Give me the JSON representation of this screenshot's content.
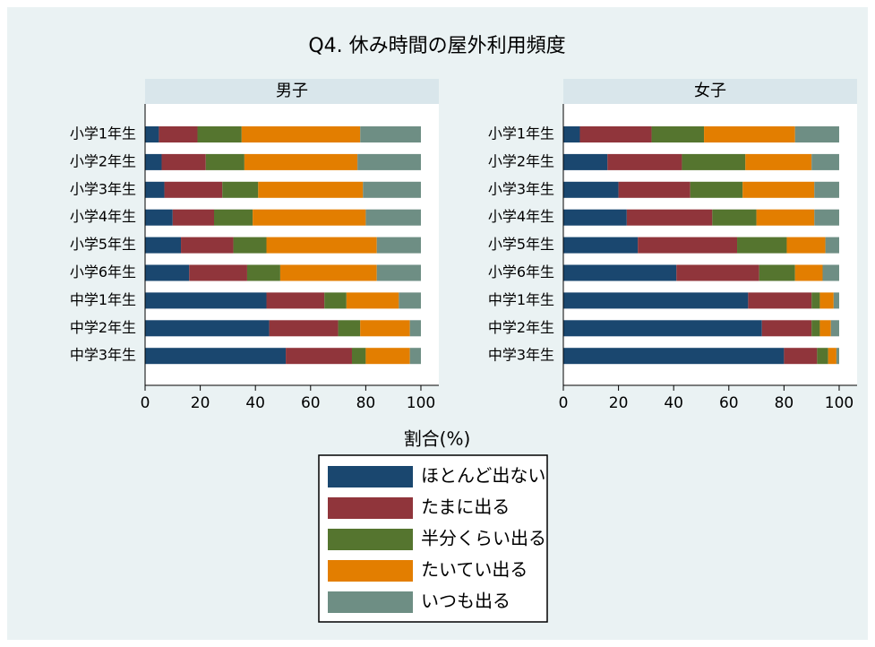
{
  "chart_data": {
    "type": "bar",
    "orientation": "horizontal",
    "stacked": true,
    "title": "Q4. 休み時間の屋外利用頻度",
    "x_label": "割合(%)",
    "categories": [
      "小学1年生",
      "小学2年生",
      "小学3年生",
      "小学4年生",
      "小学5年生",
      "小学6年生",
      "中学1年生",
      "中学2年生",
      "中学3年生"
    ],
    "series": [
      {
        "name": "ほとんど出ない",
        "color": "#1a476f"
      },
      {
        "name": "たまに出る",
        "color": "#90353b"
      },
      {
        "name": "半分くらい出る",
        "color": "#55752f"
      },
      {
        "name": "たいてい出る",
        "color": "#e37e00"
      },
      {
        "name": "いつも出る",
        "color": "#6e8e84"
      }
    ],
    "panels": [
      {
        "title": "男子",
        "values": [
          [
            5,
            6,
            7,
            10,
            13,
            16,
            44,
            45,
            51
          ],
          [
            14,
            16,
            21,
            15,
            19,
            21,
            21,
            25,
            24
          ],
          [
            16,
            14,
            13,
            14,
            12,
            12,
            8,
            8,
            5
          ],
          [
            43,
            41,
            38,
            41,
            40,
            35,
            19,
            18,
            16
          ],
          [
            22,
            23,
            21,
            20,
            16,
            16,
            8,
            4,
            4
          ]
        ]
      },
      {
        "title": "女子",
        "values": [
          [
            6,
            16,
            20,
            23,
            27,
            41,
            67,
            72,
            80
          ],
          [
            26,
            27,
            26,
            31,
            36,
            30,
            23,
            18,
            12
          ],
          [
            19,
            23,
            19,
            16,
            18,
            13,
            3,
            3,
            4
          ],
          [
            33,
            24,
            26,
            21,
            14,
            10,
            5,
            4,
            3
          ],
          [
            16,
            10,
            9,
            9,
            5,
            6,
            2,
            3,
            1
          ]
        ]
      }
    ],
    "xlim": [
      0,
      106.5
    ],
    "xticks": [
      0,
      20,
      40,
      60,
      80,
      100
    ],
    "legend": "bottom"
  }
}
